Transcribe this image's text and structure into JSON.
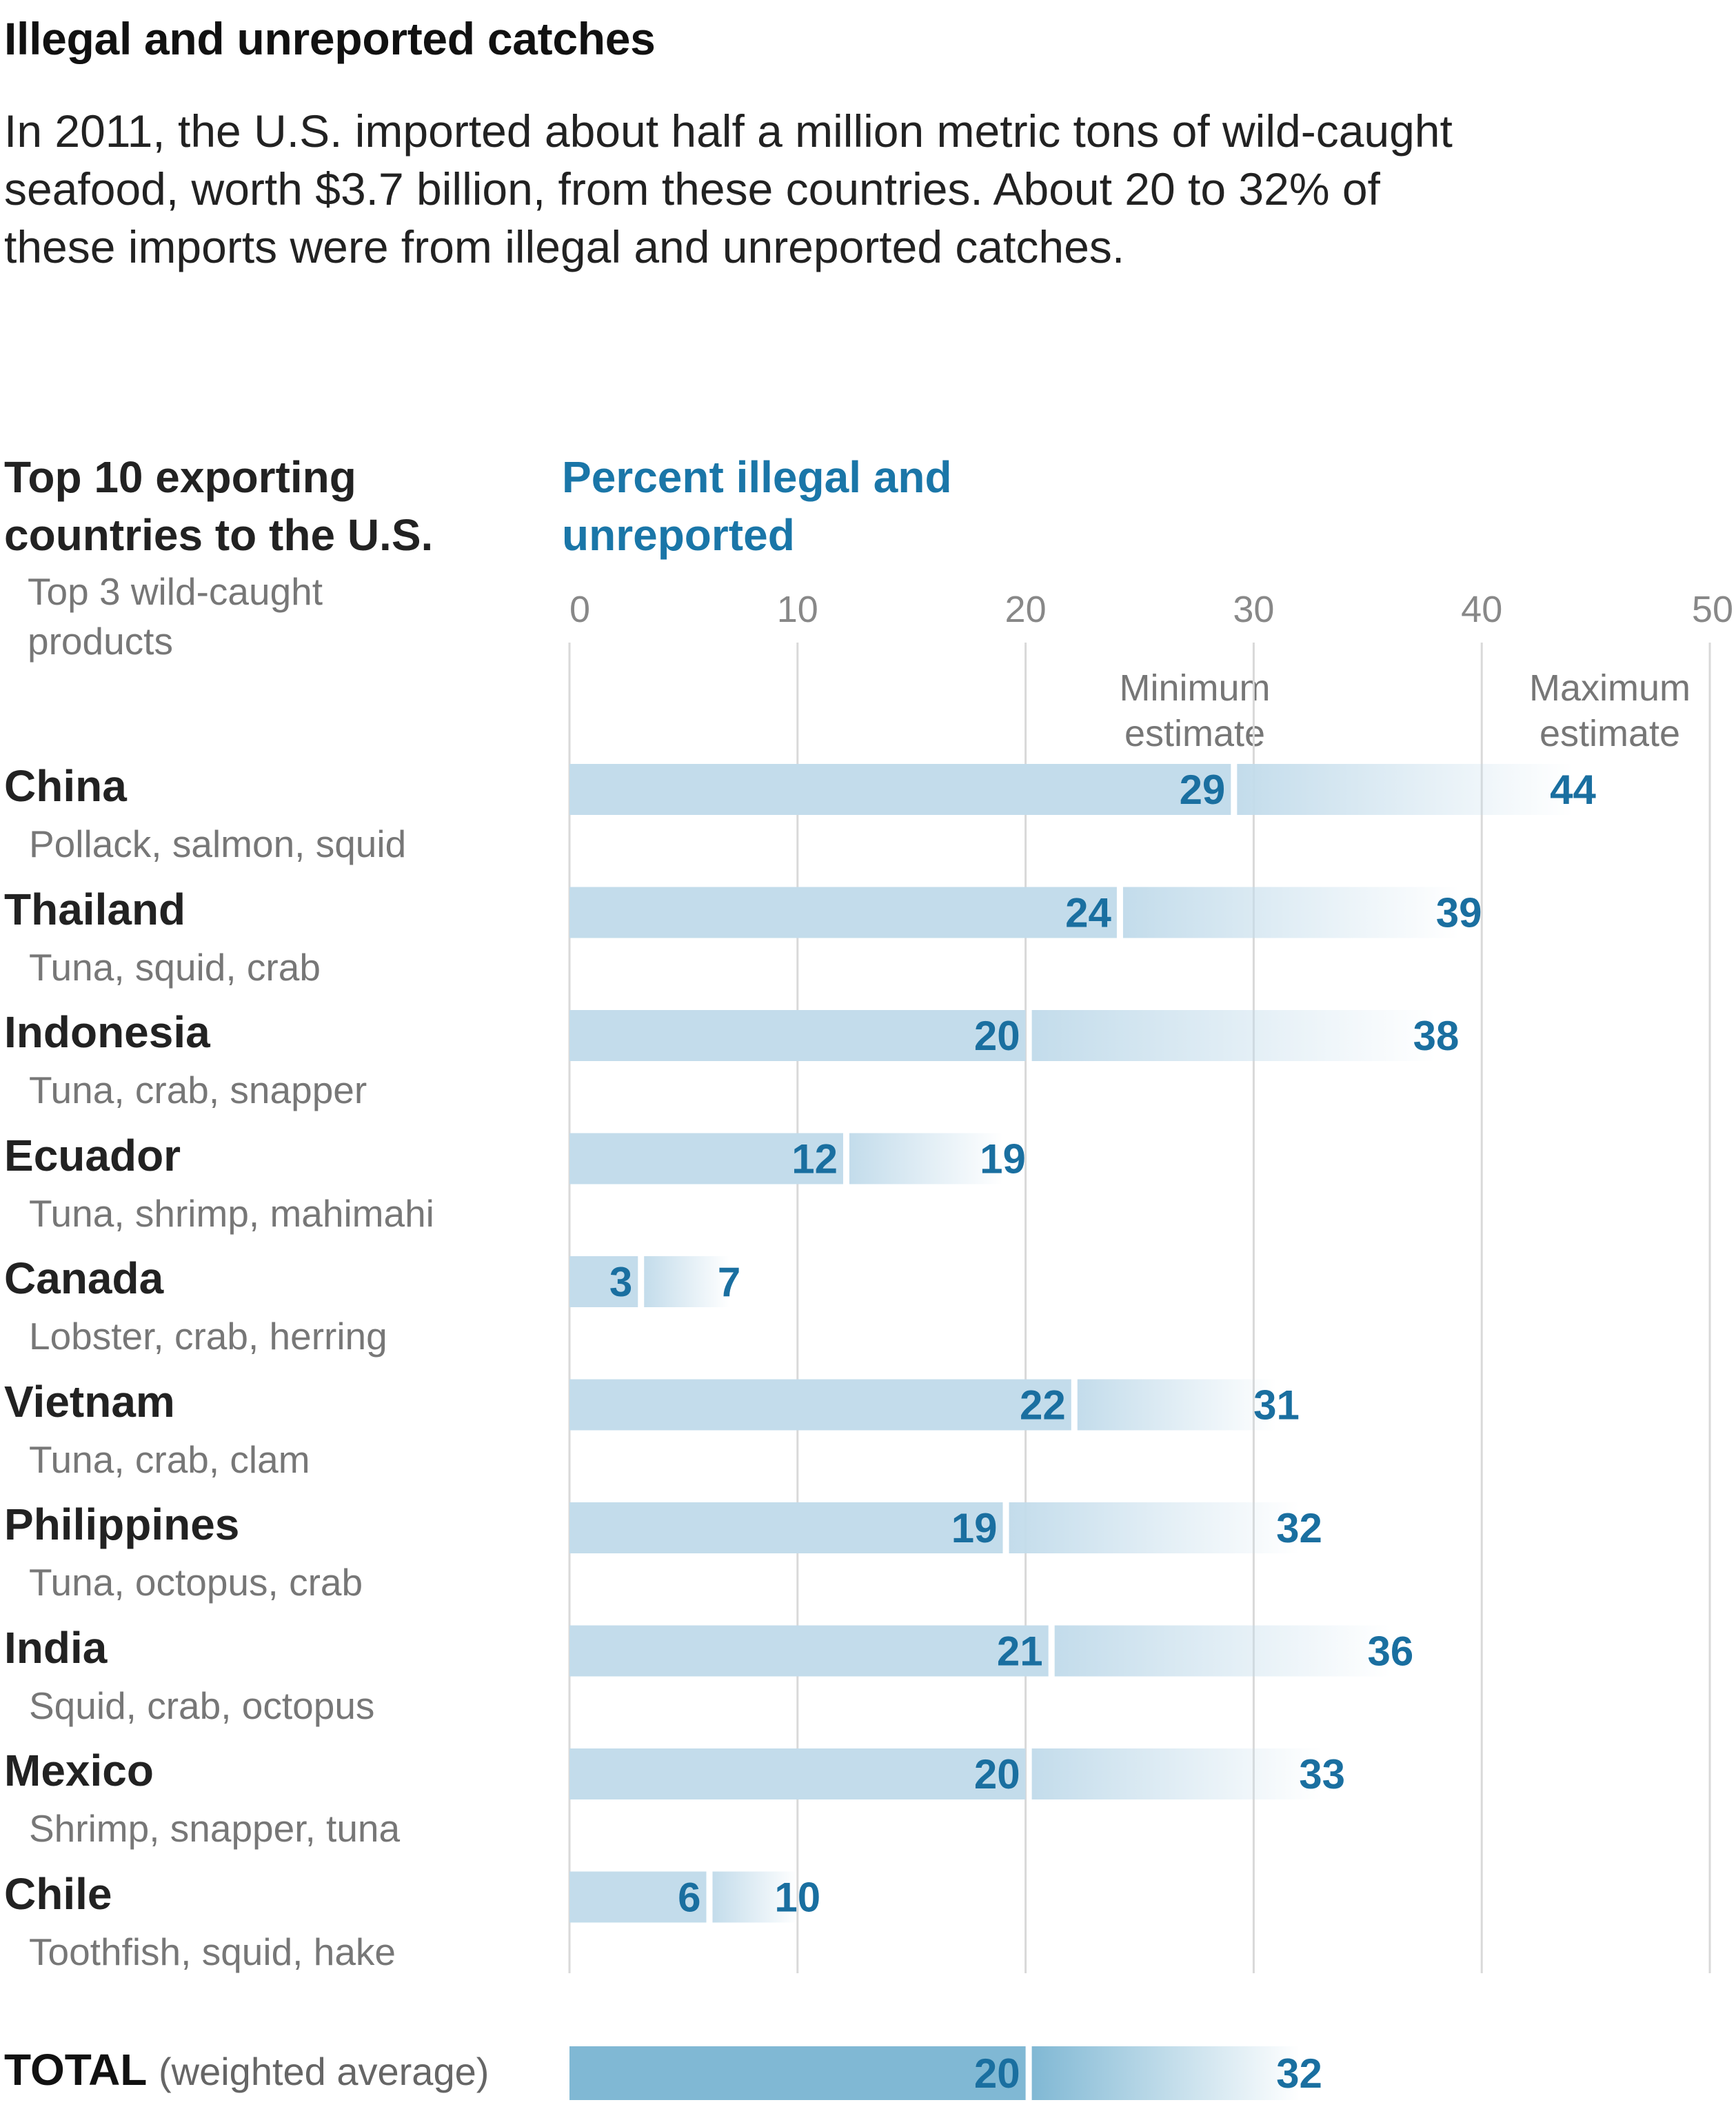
{
  "title": "Illegal and unreported catches",
  "subtitle": "In 2011, the U.S. imported about half a million metric tons of wild-caught seafood, worth $3.7 billion, from these countries. About 20 to 32% of these imports were from illegal and unreported catches.",
  "left_header": "Top 10 exporting countries to the U.S.",
  "left_subheader": "Top 3 wild-caught products",
  "chart_header": "Percent illegal and unreported",
  "legend": {
    "min": "Minimum estimate",
    "max": "Maximum estimate"
  },
  "total": {
    "label": "TOTAL",
    "note": "(weighted average)"
  },
  "colors": {
    "bar": "#c3dceb",
    "total_bar": "#80b8d4",
    "value": "#1a6fa0",
    "header_blue": "#1a76a8",
    "grid": "#d9d9d9"
  },
  "rows": [
    {
      "country": "China",
      "products": "Pollack, salmon, squid"
    },
    {
      "country": "Thailand",
      "products": "Tuna, squid, crab"
    },
    {
      "country": "Indonesia",
      "products": "Tuna, crab, snapper"
    },
    {
      "country": "Ecuador",
      "products": "Tuna, shrimp, mahimahi"
    },
    {
      "country": "Canada",
      "products": "Lobster, crab, herring"
    },
    {
      "country": "Vietnam",
      "products": "Tuna, crab, clam"
    },
    {
      "country": "Philippines",
      "products": "Tuna, octopus, crab"
    },
    {
      "country": "India",
      "products": "Squid, crab, octopus"
    },
    {
      "country": "Mexico",
      "products": "Shrimp, snapper, tuna"
    },
    {
      "country": "Chile",
      "products": "Toothfish, squid, hake"
    }
  ],
  "chart_data": {
    "type": "bar",
    "orientation": "horizontal",
    "title": "Percent illegal and unreported",
    "xlim": [
      0,
      50
    ],
    "ticks": [
      0,
      10,
      20,
      30,
      40,
      50
    ],
    "grid": true,
    "categories": [
      "China",
      "Thailand",
      "Indonesia",
      "Ecuador",
      "Canada",
      "Vietnam",
      "Philippines",
      "India",
      "Mexico",
      "Chile"
    ],
    "series": [
      {
        "name": "Minimum estimate",
        "values": [
          29,
          24,
          20,
          12,
          3,
          22,
          19,
          21,
          20,
          6
        ]
      },
      {
        "name": "Maximum estimate",
        "values": [
          44,
          39,
          38,
          19,
          7,
          31,
          32,
          36,
          33,
          10
        ]
      }
    ],
    "total": {
      "label": "TOTAL (weighted average)",
      "min": 20,
      "max": 32
    }
  }
}
